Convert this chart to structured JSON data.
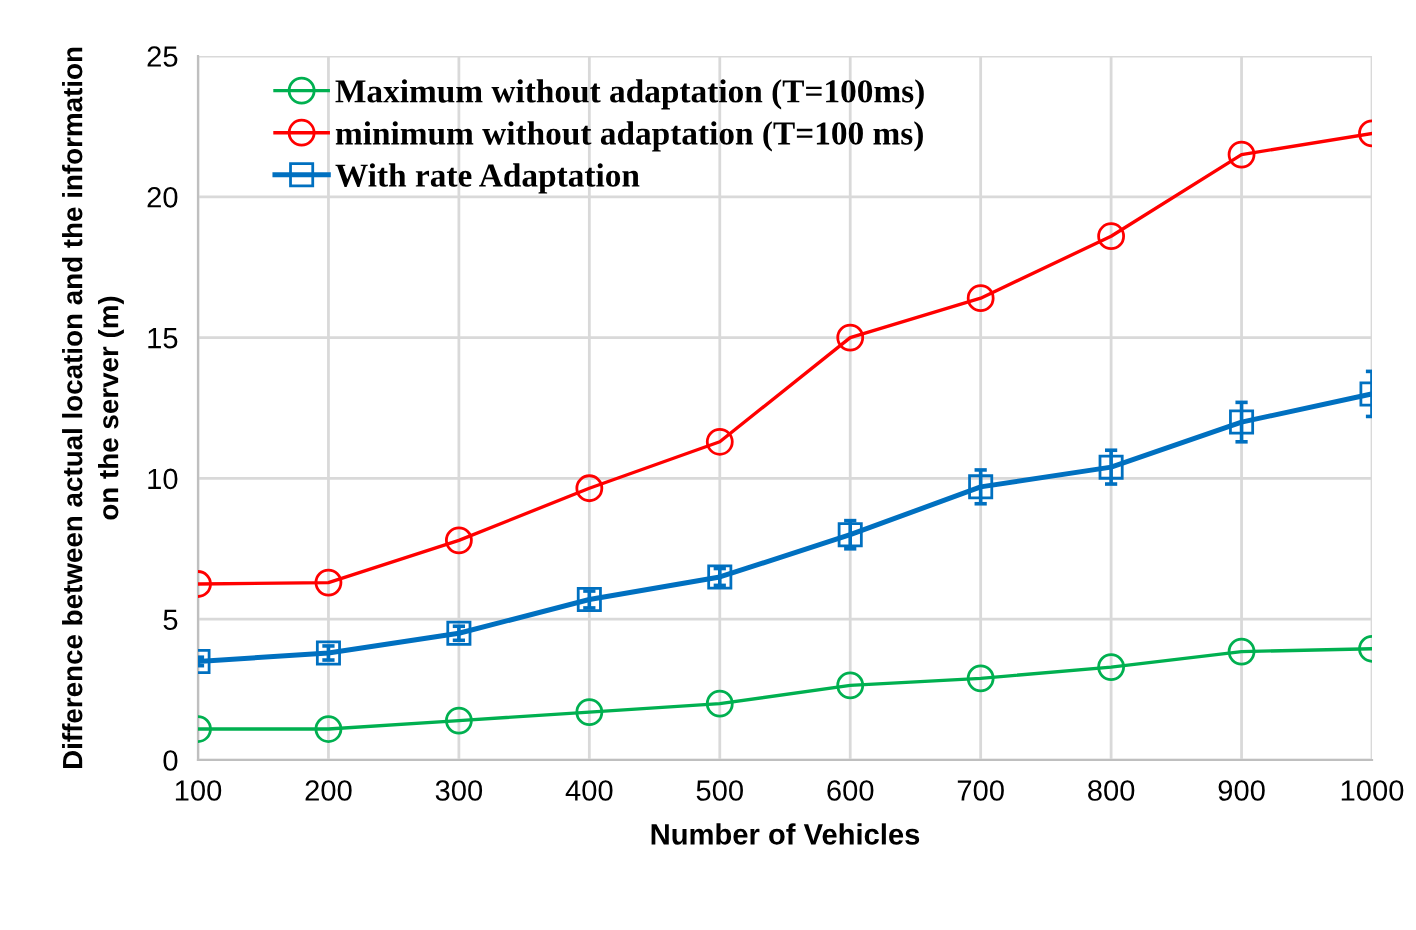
{
  "chart_data": {
    "type": "line",
    "xlabel": "Number of Vehicles",
    "ylabel": "Difference between actual location and the information\non the server (m)",
    "x": [
      100,
      200,
      300,
      400,
      500,
      600,
      700,
      800,
      900,
      1000
    ],
    "series": [
      {
        "name": "Maximum without adaptation (T=100ms)",
        "color": "#00b050",
        "marker": "circle",
        "values": [
          1.1,
          1.1,
          1.4,
          1.7,
          2.0,
          2.65,
          2.9,
          3.3,
          3.85,
          3.95
        ]
      },
      {
        "name": "minimum without adaptation (T=100 ms)",
        "color": "#ff0000",
        "marker": "circle",
        "values": [
          6.25,
          6.3,
          7.8,
          9.65,
          11.3,
          15.0,
          16.4,
          18.6,
          21.5,
          22.25
        ]
      },
      {
        "name": "With rate Adaptation",
        "color": "#0070c0",
        "marker": "square",
        "values": [
          3.5,
          3.8,
          4.5,
          5.7,
          6.5,
          8.0,
          9.7,
          10.4,
          12.0,
          13.0
        ],
        "errors": [
          0.15,
          0.25,
          0.25,
          0.3,
          0.3,
          0.5,
          0.6,
          0.6,
          0.7,
          0.8
        ]
      }
    ],
    "xlim": [
      100,
      1000
    ],
    "ylim": [
      0,
      25
    ],
    "xticks": [
      100,
      200,
      300,
      400,
      500,
      600,
      700,
      800,
      900,
      1000
    ],
    "yticks": [
      0,
      5,
      10,
      15,
      20,
      25
    ],
    "grid": true,
    "legend": "top left"
  }
}
